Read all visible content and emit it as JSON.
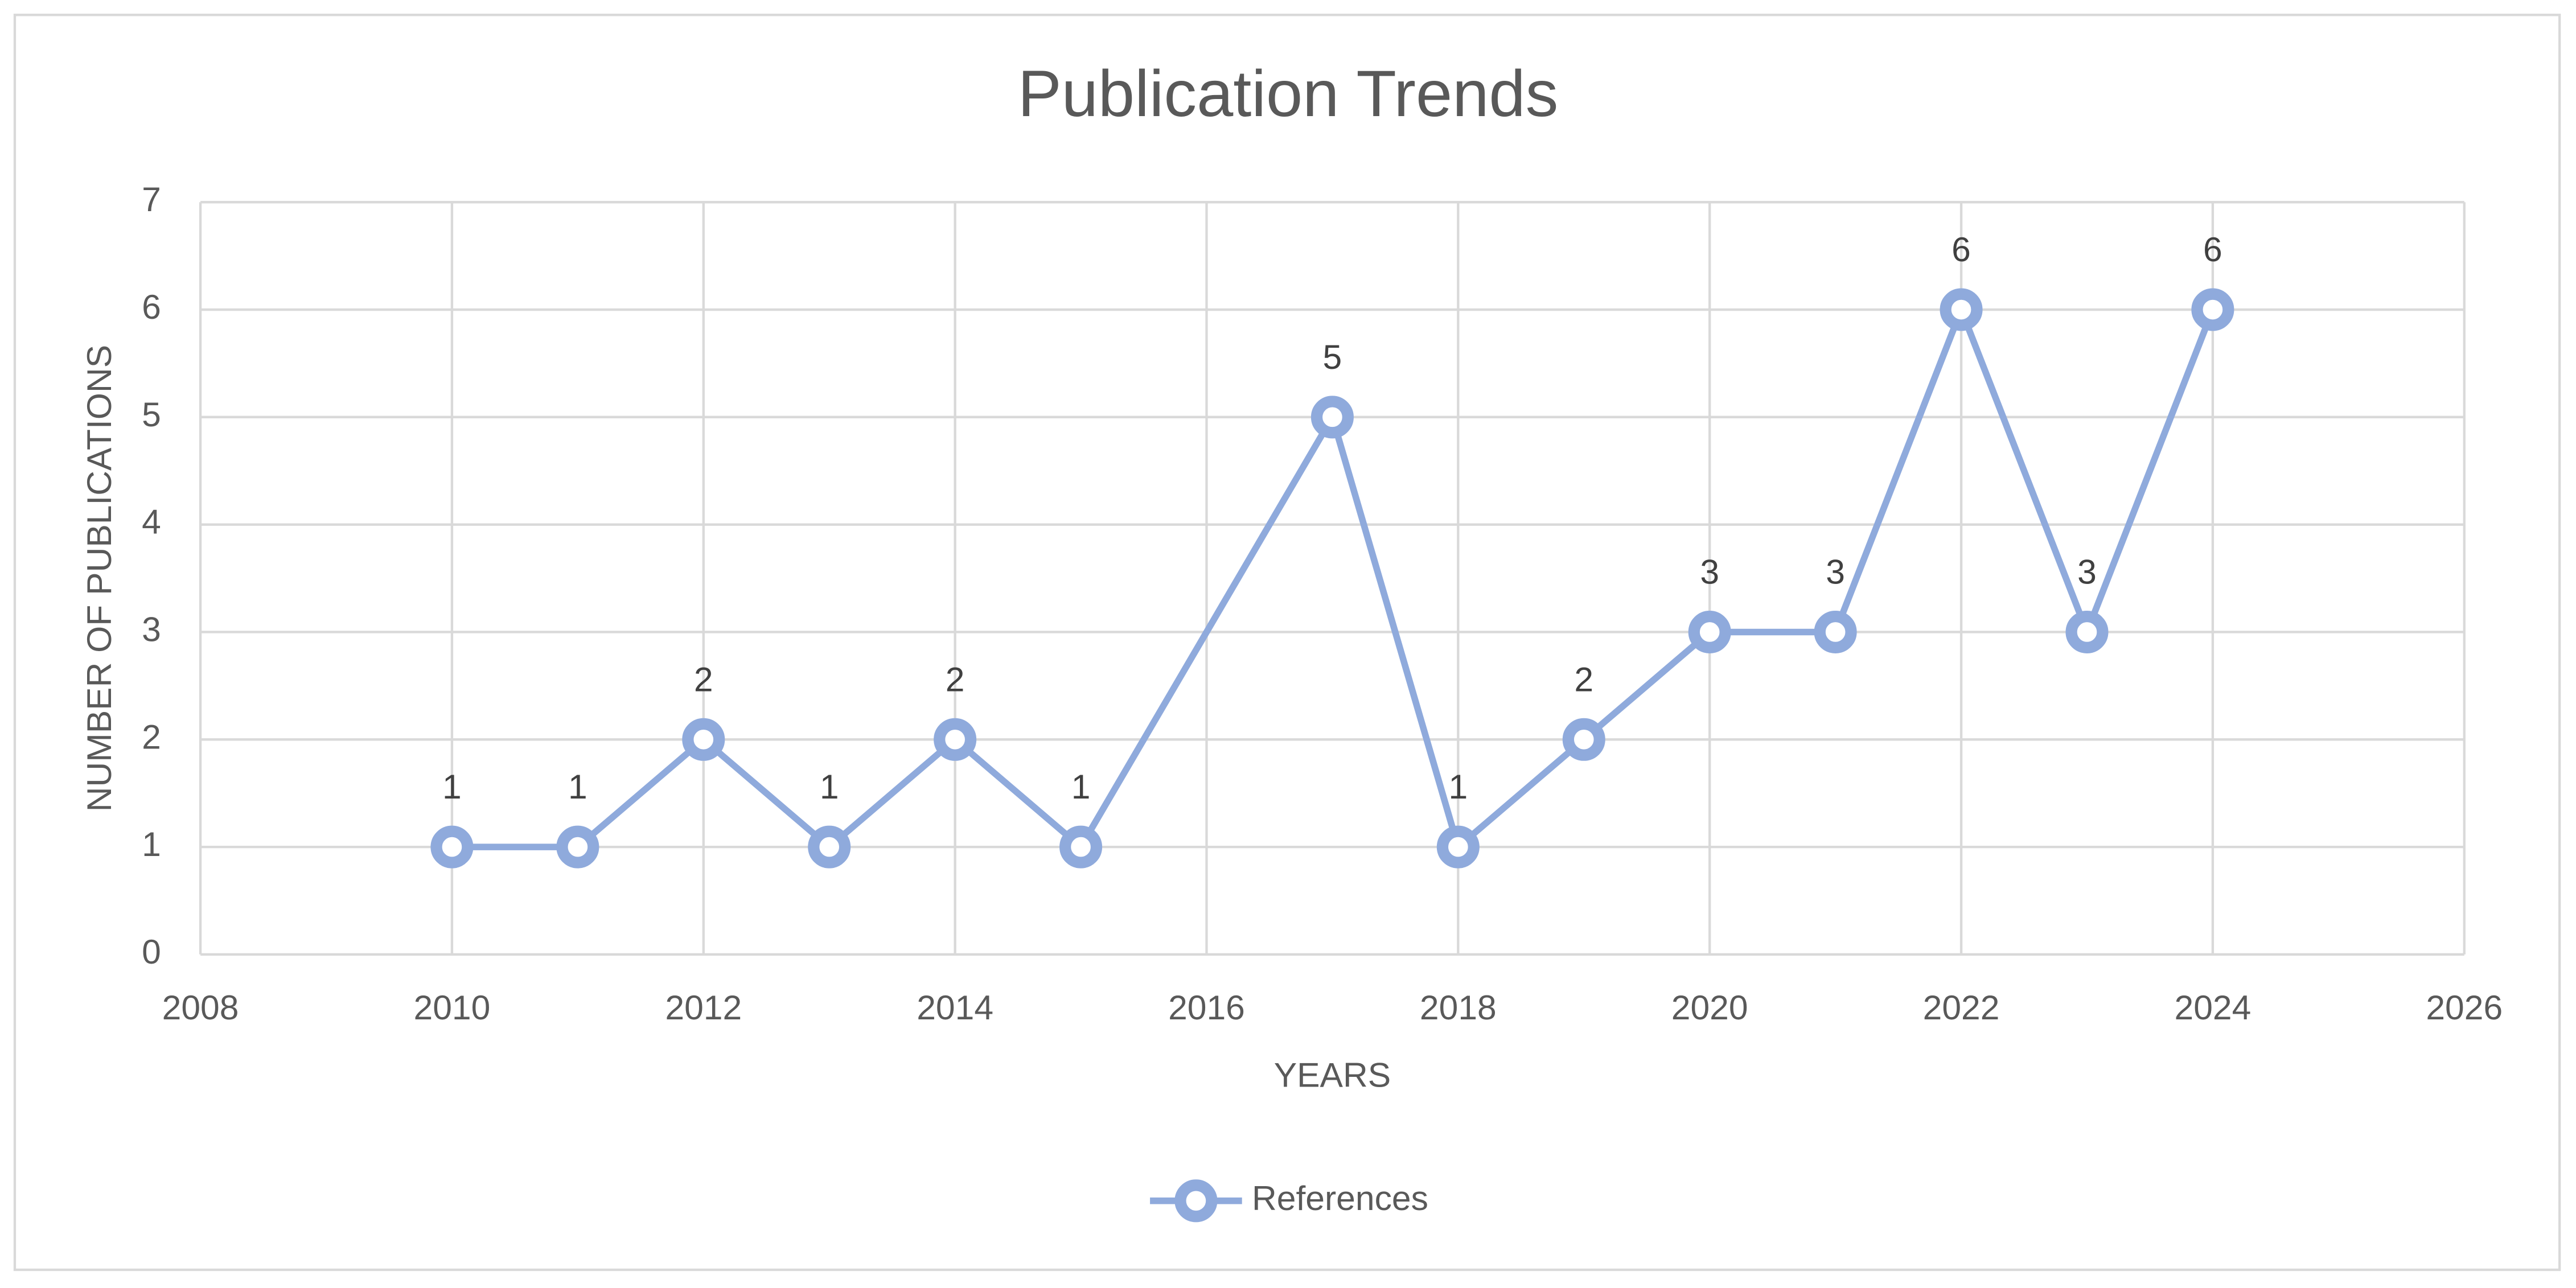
{
  "chart_data": {
    "type": "line",
    "title": "Publication Trends",
    "x_label": "YEARS",
    "y_label": "NUMBER OF PUBLICATIONS",
    "x": [
      2010,
      2011,
      2012,
      2013,
      2014,
      2015,
      2017,
      2018,
      2019,
      2020,
      2021,
      2022,
      2023,
      2024
    ],
    "series": [
      {
        "name": "References",
        "color": "#8faadc",
        "values": [
          1,
          1,
          2,
          1,
          2,
          1,
          5,
          1,
          2,
          3,
          3,
          6,
          3,
          6
        ]
      }
    ],
    "xlim": [
      2008,
      2026
    ],
    "xticks": [
      2008,
      2010,
      2012,
      2014,
      2016,
      2018,
      2020,
      2022,
      2024,
      2026
    ],
    "ylim": [
      0,
      7
    ],
    "yticks": [
      0,
      1,
      2,
      3,
      4,
      5,
      6,
      7
    ],
    "grid": true,
    "legend": "bottom"
  }
}
